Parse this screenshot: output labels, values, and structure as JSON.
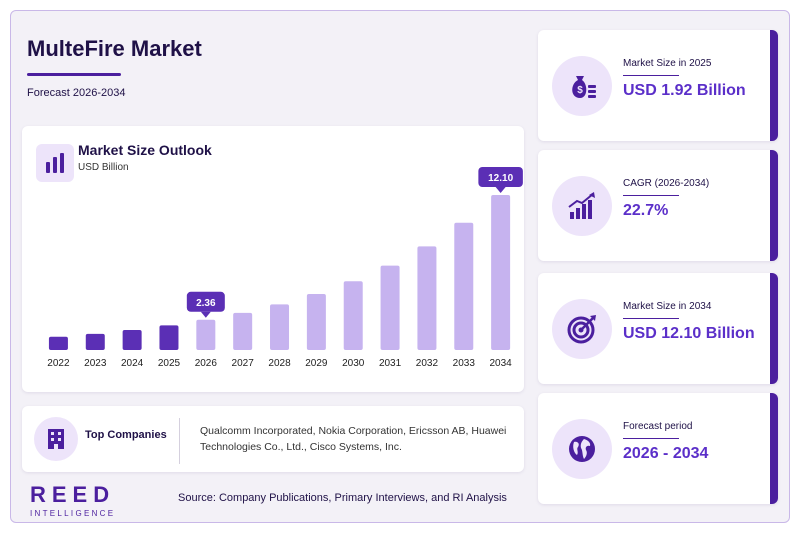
{
  "header": {
    "title": "MulteFire Market",
    "subtitle": "Forecast 2026-2034"
  },
  "chart_card": {
    "title": "Market Size Outlook",
    "unit": "USD Billion"
  },
  "chart_data": {
    "type": "bar",
    "title": "Market Size Outlook",
    "ylabel": "USD Billion",
    "categories": [
      "2022",
      "2023",
      "2024",
      "2025",
      "2026",
      "2027",
      "2028",
      "2029",
      "2030",
      "2031",
      "2032",
      "2033",
      "2034"
    ],
    "values": [
      1.03,
      1.26,
      1.56,
      1.92,
      2.36,
      2.9,
      3.56,
      4.37,
      5.37,
      6.59,
      8.09,
      9.93,
      12.1
    ],
    "ylim": [
      0,
      12.1
    ],
    "grid": false,
    "highlighted": [
      {
        "category": "2026",
        "label": "2.36"
      },
      {
        "category": "2034",
        "label": "12.10"
      }
    ],
    "historical_color": "#5b2fb5",
    "forecast_color": "#c6b3ef",
    "callout_color": "#5b2fb5"
  },
  "companies": {
    "label": "Top Companies",
    "list": "Qualcomm Incorporated, Nokia Corporation, Ericsson AB, Huawei Technologies Co., Ltd., Cisco Systems, Inc."
  },
  "footer": {
    "logo_main": "REED",
    "logo_sub": "INTELLIGENCE",
    "source": "Source: Company Publications, Primary Interviews, and RI Analysis"
  },
  "stats": [
    {
      "label": "Market Size in 2025",
      "value": "USD 1.92 Billion",
      "icon": "money-bag-icon"
    },
    {
      "label": "CAGR (2026-2034)",
      "value": "22.7%",
      "icon": "growth-chart-icon"
    },
    {
      "label": "Market Size in 2034",
      "value": "USD 12.10 Billion",
      "icon": "target-icon"
    },
    {
      "label": "Forecast period",
      "value": "2026 - 2034",
      "icon": "globe-icon"
    }
  ],
  "colors": {
    "accent": "#4b1f9e",
    "value_text": "#5b2fc9",
    "icon_bg": "#ede4fa"
  }
}
